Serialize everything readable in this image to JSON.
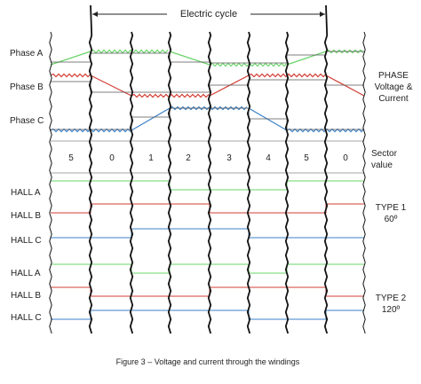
{
  "title": "Electric cycle",
  "phase_labels": [
    "Phase A",
    "Phase B",
    "Phase C"
  ],
  "right_label_phase": [
    "PHASE",
    "Voltage &",
    "Current"
  ],
  "sector_values": [
    "5",
    "0",
    "1",
    "2",
    "3",
    "4",
    "5",
    "0"
  ],
  "sector_label": [
    "Sector",
    "value"
  ],
  "type1_hall_labels": [
    "HALL A",
    "HALL B",
    "HALL C"
  ],
  "type1_label": [
    "TYPE 1",
    "60º"
  ],
  "type2_hall_labels": [
    "HALL A",
    "HALL B",
    "HALL C"
  ],
  "type2_label": [
    "TYPE 2",
    "120º"
  ],
  "caption": "Figure 3 – Voltage and current through the windings",
  "colors": {
    "phase_a": "#6ad46a",
    "phase_b": "#d23c34",
    "phase_c": "#3c82c8",
    "current": "#555555",
    "boundary": "#111111"
  }
}
